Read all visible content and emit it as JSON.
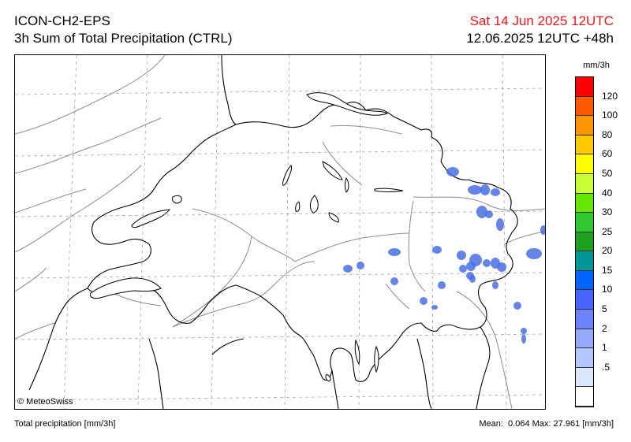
{
  "header": {
    "model": "ICON-CH2-EPS",
    "product": "3h Sum of Total Precipitation (CTRL)",
    "valid_time": "Sat 14 Jun 2025 12UTC",
    "run_time": "12.06.2025 12UTC +48h"
  },
  "map": {
    "copyright": "© MeteoSwiss",
    "precip_color": "#4a6fe3"
  },
  "legend": {
    "unit": "mm/3h",
    "labels": [
      "120",
      "100",
      "80",
      "60",
      "50",
      "40",
      "30",
      "25",
      "20",
      "15",
      "10",
      "5",
      "2",
      "1",
      ".5"
    ],
    "colors": [
      "#ff0000",
      "#ff5a00",
      "#ff9600",
      "#ffc800",
      "#ffff00",
      "#c8ff32",
      "#64e600",
      "#32c832",
      "#1ea01e",
      "#009696",
      "#0064ff",
      "#4b64ff",
      "#6e82ff",
      "#96aaff",
      "#b4c8ff",
      "#dce6ff",
      "#ffffff"
    ]
  },
  "footer": {
    "left": "Total precipitation [mm/3h]",
    "mean_label": "Mean:",
    "mean_value": "0.064",
    "max_label": "Max:",
    "max_value": "27.961",
    "unit": "[mm/3h]"
  }
}
